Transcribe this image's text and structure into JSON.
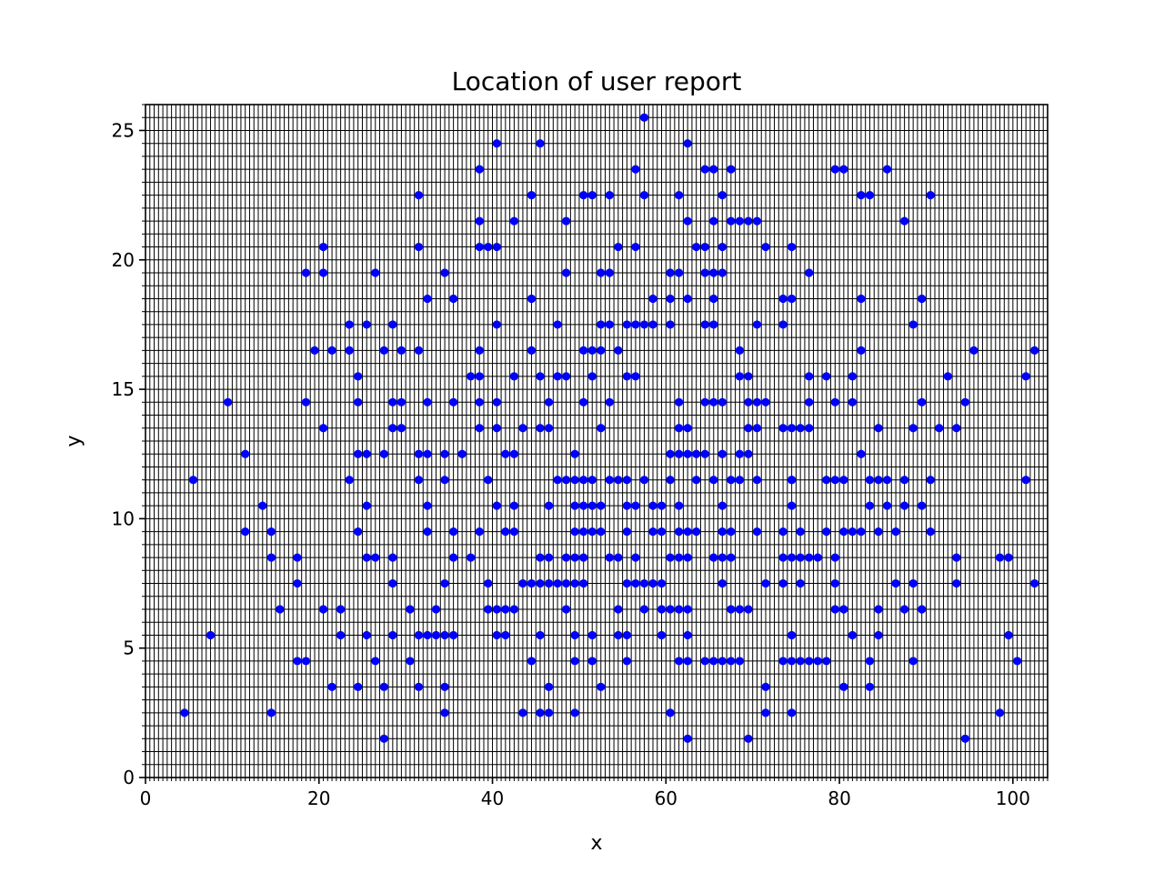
{
  "chart_data": {
    "type": "scatter",
    "title": "Location of user report",
    "xlabel": "x",
    "ylabel": "y",
    "xlim": [
      0,
      104
    ],
    "ylim": [
      0,
      26
    ],
    "xticks": [
      0,
      20,
      40,
      60,
      80,
      100
    ],
    "yticks": [
      0,
      5,
      10,
      15,
      20,
      25
    ],
    "grid": true,
    "grid_step": 0.5,
    "colors": {
      "marker": "#0000ff",
      "grid": "#000000",
      "axes": "#000000"
    },
    "series": [
      {
        "x": [
          4.5,
          5.5,
          7.5,
          9.5,
          11.5,
          11.5,
          13.5,
          14.5,
          14.5,
          14.5,
          15.5,
          17.5,
          17.5,
          17.5,
          18.5,
          18.5,
          18.5,
          19.5,
          20.5,
          20.5,
          20.5,
          20.5,
          21.5,
          21.5,
          22.5,
          22.5,
          23.5,
          23.5,
          23.5,
          24.5,
          24.5,
          24.5,
          24.5,
          24.5,
          25.5,
          25.5,
          25.5,
          25.5,
          25.5,
          26.5,
          26.5,
          26.5,
          27.5,
          27.5,
          27.5,
          27.5,
          28.5,
          28.5,
          28.5,
          28.5,
          28.5,
          28.5,
          29.5,
          29.5,
          29.5,
          30.5,
          30.5,
          31.5,
          31.5,
          31.5,
          31.5,
          31.5,
          31.5,
          31.5,
          32.5,
          32.5,
          32.5,
          32.5,
          32.5,
          32.5,
          33.5,
          33.5,
          34.5,
          34.5,
          34.5,
          34.5,
          34.5,
          34.5,
          34.5,
          35.5,
          35.5,
          35.5,
          35.5,
          35.5,
          36.5,
          37.5,
          37.5,
          38.5,
          38.5,
          38.5,
          38.5,
          38.5,
          38.5,
          38.5,
          38.5,
          39.5,
          39.5,
          39.5,
          39.5,
          40.5,
          40.5,
          40.5,
          40.5,
          40.5,
          40.5,
          40.5,
          40.5,
          41.5,
          41.5,
          41.5,
          41.5,
          42.5,
          42.5,
          42.5,
          42.5,
          42.5,
          42.5,
          43.5,
          43.5,
          43.5,
          44.5,
          44.5,
          44.5,
          44.5,
          44.5,
          45.5,
          45.5,
          45.5,
          45.5,
          45.5,
          45.5,
          45.5,
          46.5,
          46.5,
          46.5,
          46.5,
          46.5,
          46.5,
          46.5,
          47.5,
          47.5,
          47.5,
          47.5,
          48.5,
          48.5,
          48.5,
          48.5,
          48.5,
          48.5,
          48.5,
          49.5,
          49.5,
          49.5,
          49.5,
          49.5,
          49.5,
          49.5,
          49.5,
          49.5,
          50.5,
          50.5,
          50.5,
          50.5,
          50.5,
          50.5,
          50.5,
          50.5,
          51.5,
          51.5,
          51.5,
          51.5,
          51.5,
          51.5,
          51.5,
          51.5,
          52.5,
          52.5,
          52.5,
          52.5,
          52.5,
          52.5,
          52.5,
          53.5,
          53.5,
          53.5,
          53.5,
          53.5,
          53.5,
          54.5,
          54.5,
          54.5,
          54.5,
          54.5,
          54.5,
          55.5,
          55.5,
          55.5,
          55.5,
          55.5,
          55.5,
          55.5,
          55.5,
          56.5,
          56.5,
          56.5,
          56.5,
          56.5,
          56.5,
          56.5,
          57.5,
          57.5,
          57.5,
          57.5,
          57.5,
          57.5,
          58.5,
          58.5,
          58.5,
          58.5,
          58.5,
          59.5,
          59.5,
          59.5,
          59.5,
          59.5,
          60.5,
          60.5,
          60.5,
          60.5,
          60.5,
          60.5,
          60.5,
          60.5,
          61.5,
          61.5,
          61.5,
          61.5,
          61.5,
          61.5,
          61.5,
          61.5,
          61.5,
          61.5,
          62.5,
          62.5,
          62.5,
          62.5,
          62.5,
          62.5,
          62.5,
          62.5,
          62.5,
          62.5,
          62.5,
          63.5,
          63.5,
          63.5,
          63.5,
          64.5,
          64.5,
          64.5,
          64.5,
          64.5,
          64.5,
          64.5,
          65.5,
          65.5,
          65.5,
          65.5,
          65.5,
          65.5,
          65.5,
          65.5,
          65.5,
          66.5,
          66.5,
          66.5,
          66.5,
          66.5,
          66.5,
          66.5,
          66.5,
          66.5,
          66.5,
          67.5,
          67.5,
          67.5,
          67.5,
          67.5,
          67.5,
          67.5,
          68.5,
          68.5,
          68.5,
          68.5,
          68.5,
          68.5,
          68.5,
          69.5,
          69.5,
          69.5,
          69.5,
          69.5,
          69.5,
          69.5,
          70.5,
          70.5,
          70.5,
          70.5,
          70.5,
          70.5,
          71.5,
          71.5,
          71.5,
          71.5,
          71.5,
          73.5,
          73.5,
          73.5,
          73.5,
          73.5,
          73.5,
          73.5,
          74.5,
          74.5,
          74.5,
          74.5,
          74.5,
          74.5,
          74.5,
          74.5,
          74.5,
          74.5,
          75.5,
          75.5,
          75.5,
          75.5,
          75.5,
          76.5,
          76.5,
          76.5,
          76.5,
          76.5,
          76.5,
          77.5,
          77.5,
          78.5,
          78.5,
          78.5,
          78.5,
          79.5,
          79.5,
          79.5,
          79.5,
          79.5,
          79.5,
          80.5,
          80.5,
          80.5,
          80.5,
          80.5,
          81.5,
          81.5,
          81.5,
          81.5,
          82.5,
          82.5,
          82.5,
          82.5,
          82.5,
          83.5,
          83.5,
          83.5,
          83.5,
          83.5,
          84.5,
          84.5,
          84.5,
          84.5,
          84.5,
          85.5,
          85.5,
          85.5,
          86.5,
          86.5,
          87.5,
          87.5,
          87.5,
          87.5,
          88.5,
          88.5,
          88.5,
          88.5,
          89.5,
          89.5,
          89.5,
          89.5,
          90.5,
          90.5,
          90.5,
          91.5,
          92.5,
          93.5,
          93.5,
          93.5,
          94.5,
          94.5,
          95.5,
          98.5,
          98.5,
          99.5,
          99.5,
          100.5,
          101.5,
          101.5,
          102.5,
          102.5
        ],
        "y": [
          2.5,
          11.5,
          5.5,
          14.5,
          12.5,
          9.5,
          10.5,
          9.5,
          8.5,
          2.5,
          6.5,
          8.5,
          7.5,
          4.5,
          19.5,
          14.5,
          4.5,
          16.5,
          20.5,
          19.5,
          13.5,
          6.5,
          16.5,
          3.5,
          6.5,
          5.5,
          17.5,
          16.5,
          11.5,
          15.5,
          14.5,
          12.5,
          9.5,
          3.5,
          17.5,
          12.5,
          10.5,
          8.5,
          5.5,
          19.5,
          8.5,
          4.5,
          16.5,
          12.5,
          3.5,
          1.5,
          17.5,
          14.5,
          13.5,
          8.5,
          7.5,
          5.5,
          16.5,
          14.5,
          13.5,
          6.5,
          4.5,
          22.5,
          20.5,
          16.5,
          12.5,
          11.5,
          5.5,
          3.5,
          18.5,
          14.5,
          12.5,
          10.5,
          9.5,
          5.5,
          6.5,
          5.5,
          19.5,
          12.5,
          11.5,
          7.5,
          5.5,
          3.5,
          2.5,
          18.5,
          14.5,
          9.5,
          8.5,
          5.5,
          12.5,
          15.5,
          8.5,
          23.5,
          21.5,
          20.5,
          16.5,
          15.5,
          14.5,
          13.5,
          9.5,
          20.5,
          11.5,
          7.5,
          6.5,
          24.5,
          20.5,
          17.5,
          14.5,
          13.5,
          10.5,
          6.5,
          5.5,
          12.5,
          9.5,
          6.5,
          5.5,
          21.5,
          15.5,
          12.5,
          10.5,
          9.5,
          6.5,
          13.5,
          7.5,
          2.5,
          22.5,
          18.5,
          16.5,
          7.5,
          4.5,
          24.5,
          15.5,
          13.5,
          8.5,
          7.5,
          5.5,
          2.5,
          14.5,
          13.5,
          10.5,
          8.5,
          7.5,
          2.5,
          3.5,
          17.5,
          15.5,
          11.5,
          7.5,
          21.5,
          19.5,
          15.5,
          11.5,
          8.5,
          7.5,
          6.5,
          12.5,
          11.5,
          10.5,
          9.5,
          8.5,
          7.5,
          5.5,
          4.5,
          2.5,
          22.5,
          16.5,
          14.5,
          11.5,
          10.5,
          9.5,
          8.5,
          7.5,
          22.5,
          16.5,
          15.5,
          11.5,
          10.5,
          9.5,
          5.5,
          4.5,
          19.5,
          17.5,
          16.5,
          13.5,
          10.5,
          9.5,
          3.5,
          22.5,
          19.5,
          17.5,
          14.5,
          11.5,
          8.5,
          20.5,
          16.5,
          11.5,
          8.5,
          6.5,
          5.5,
          17.5,
          15.5,
          11.5,
          10.5,
          9.5,
          7.5,
          5.5,
          4.5,
          23.5,
          20.5,
          17.5,
          15.5,
          10.5,
          8.5,
          7.5,
          25.5,
          22.5,
          17.5,
          11.5,
          7.5,
          6.5,
          18.5,
          17.5,
          10.5,
          9.5,
          7.5,
          10.5,
          9.5,
          7.5,
          6.5,
          5.5,
          19.5,
          18.5,
          17.5,
          12.5,
          11.5,
          8.5,
          6.5,
          2.5,
          22.5,
          19.5,
          14.5,
          13.5,
          12.5,
          10.5,
          9.5,
          8.5,
          6.5,
          4.5,
          24.5,
          21.5,
          18.5,
          13.5,
          12.5,
          9.5,
          8.5,
          6.5,
          5.5,
          4.5,
          1.5,
          20.5,
          12.5,
          11.5,
          9.5,
          23.5,
          20.5,
          19.5,
          17.5,
          14.5,
          12.5,
          4.5,
          23.5,
          21.5,
          19.5,
          18.5,
          17.5,
          14.5,
          11.5,
          8.5,
          4.5,
          22.5,
          20.5,
          19.5,
          14.5,
          12.5,
          10.5,
          9.5,
          8.5,
          7.5,
          4.5,
          23.5,
          21.5,
          11.5,
          9.5,
          8.5,
          6.5,
          4.5,
          21.5,
          16.5,
          15.5,
          12.5,
          11.5,
          6.5,
          4.5,
          21.5,
          15.5,
          14.5,
          13.5,
          12.5,
          6.5,
          1.5,
          21.5,
          17.5,
          14.5,
          13.5,
          11.5,
          9.5,
          20.5,
          14.5,
          7.5,
          3.5,
          2.5,
          18.5,
          17.5,
          13.5,
          9.5,
          8.5,
          7.5,
          4.5,
          20.5,
          18.5,
          13.5,
          11.5,
          10.5,
          8.5,
          5.5,
          4.5,
          2.5,
          11.5,
          13.5,
          9.5,
          8.5,
          7.5,
          4.5,
          19.5,
          15.5,
          14.5,
          13.5,
          8.5,
          4.5,
          8.5,
          4.5,
          15.5,
          11.5,
          9.5,
          4.5,
          23.5,
          14.5,
          11.5,
          8.5,
          7.5,
          6.5,
          23.5,
          11.5,
          9.5,
          6.5,
          3.5,
          15.5,
          14.5,
          9.5,
          5.5,
          22.5,
          18.5,
          16.5,
          12.5,
          9.5,
          22.5,
          11.5,
          10.5,
          4.5,
          3.5,
          13.5,
          11.5,
          9.5,
          6.5,
          5.5,
          23.5,
          11.5,
          10.5,
          9.5,
          7.5,
          21.5,
          11.5,
          10.5,
          6.5,
          17.5,
          13.5,
          7.5,
          4.5,
          18.5,
          14.5,
          10.5,
          6.5,
          22.5,
          11.5,
          9.5,
          13.5,
          15.5,
          13.5,
          8.5,
          7.5,
          14.5,
          1.5,
          16.5,
          8.5,
          2.5,
          8.5,
          5.5,
          4.5,
          15.5,
          11.5,
          16.5,
          7.5
        ]
      }
    ]
  }
}
